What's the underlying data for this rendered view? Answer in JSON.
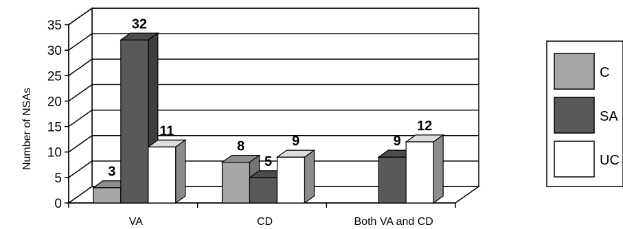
{
  "chart_data": {
    "type": "bar",
    "categories": [
      "VA",
      "CD",
      "Both VA and CD"
    ],
    "series": [
      {
        "name": "C",
        "values": [
          3,
          8,
          null
        ]
      },
      {
        "name": "SA",
        "values": [
          32,
          5,
          9
        ]
      },
      {
        "name": "UC",
        "values": [
          11,
          9,
          12
        ]
      }
    ],
    "title": "",
    "xlabel": "",
    "ylabel": "Number of NSAs",
    "ylim": [
      0,
      35
    ],
    "yticks": [
      0,
      5,
      10,
      15,
      20,
      25,
      30,
      35
    ],
    "grid": true,
    "legend": "right",
    "colors": {
      "C": "#a6a6a6",
      "SA": "#595959",
      "UC": "#ffffff"
    }
  }
}
